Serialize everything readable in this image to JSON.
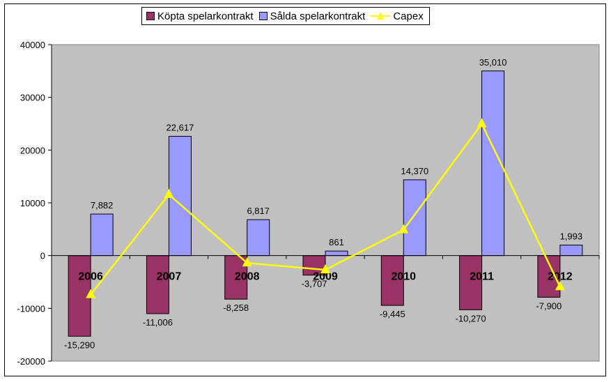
{
  "chart_data": {
    "type": "bar",
    "categories": [
      "2006",
      "2007",
      "2008",
      "2009",
      "2010",
      "2011",
      "2012"
    ],
    "series": [
      {
        "name": "Köpta spelarkontrakt",
        "type": "bar",
        "values": [
          -15290,
          -11006,
          -8258,
          -3707,
          -9445,
          -10270,
          -7900
        ],
        "labels": [
          "-15,290",
          "-11,006",
          "-8,258",
          "-3,707",
          "-9,445",
          "-10,270",
          "-7,900"
        ],
        "color": "#993366"
      },
      {
        "name": "Sålda spelarkontrakt",
        "type": "bar",
        "values": [
          7882,
          22617,
          6817,
          861,
          14370,
          35010,
          1993
        ],
        "labels": [
          "7,882",
          "22,617",
          "6,817",
          "861",
          "14,370",
          "35,010",
          "1,993"
        ],
        "color": "#9999ff"
      },
      {
        "name": "Capex",
        "type": "line",
        "values": [
          -7400,
          11600,
          -1400,
          -2700,
          4900,
          25000,
          -5900
        ],
        "color": "#ffff00"
      }
    ],
    "ylim": [
      -20000,
      40000
    ],
    "yticks": [
      -20000,
      -10000,
      0,
      10000,
      20000,
      30000,
      40000
    ],
    "title": "",
    "xlabel": "",
    "ylabel": "",
    "plot_background": "#c0c0c0",
    "grid": false,
    "legend_position": "top"
  }
}
